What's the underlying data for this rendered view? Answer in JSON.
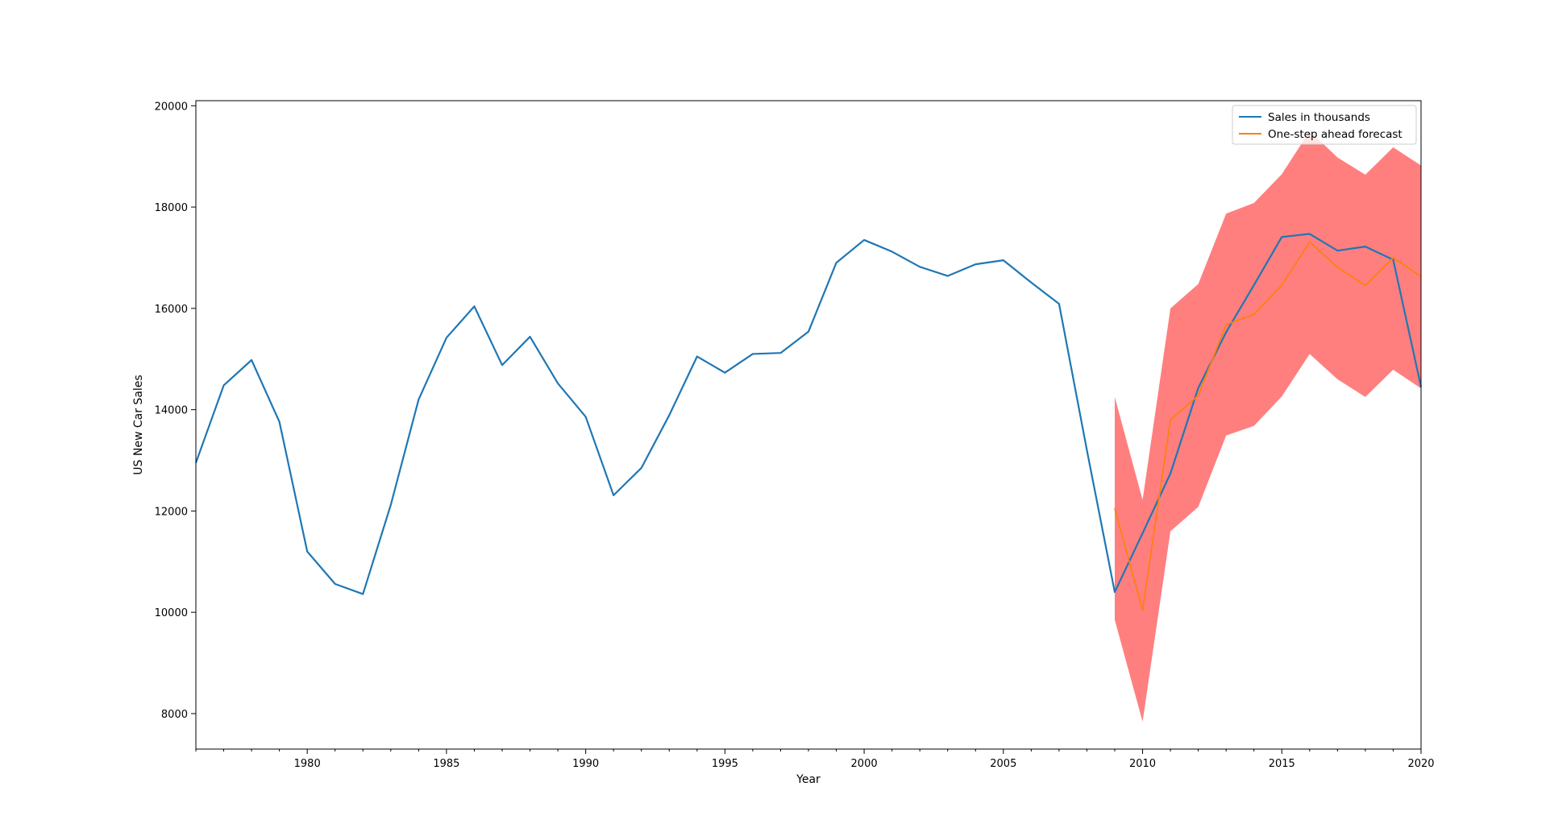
{
  "chart_data": {
    "type": "line",
    "title": "",
    "xlabel": "Year",
    "ylabel": "US New Car Sales",
    "xlim": [
      1976,
      2020
    ],
    "ylim": [
      7300,
      20100
    ],
    "xticks": [
      1980,
      1985,
      1990,
      1995,
      2000,
      2005,
      2010,
      2015,
      2020
    ],
    "yticks": [
      8000,
      10000,
      12000,
      14000,
      16000,
      18000,
      20000
    ],
    "legend_position": "top-right",
    "colors": {
      "sales": "#1f77b4",
      "forecast": "#ff7f0e",
      "band": "#ff0000"
    },
    "series": [
      {
        "name": "Sales in thousands",
        "x": [
          1976,
          1977,
          1978,
          1979,
          1980,
          1981,
          1982,
          1983,
          1984,
          1985,
          1986,
          1987,
          1988,
          1989,
          1990,
          1991,
          1992,
          1993,
          1994,
          1995,
          1996,
          1997,
          1998,
          1999,
          2000,
          2001,
          2002,
          2003,
          2004,
          2005,
          2006,
          2007,
          2008,
          2009,
          2010,
          2011,
          2012,
          2013,
          2014,
          2015,
          2016,
          2017,
          2018,
          2019,
          2020
        ],
        "values": [
          12950,
          14480,
          14980,
          13760,
          11200,
          10560,
          10360,
          12120,
          14200,
          15420,
          16040,
          14880,
          15440,
          14520,
          13860,
          12310,
          12850,
          13890,
          15050,
          14730,
          15100,
          15120,
          15540,
          16900,
          17350,
          17120,
          16820,
          16640,
          16870,
          16950,
          16510,
          16090,
          13200,
          10400,
          11560,
          12740,
          14430,
          15530,
          16460,
          17410,
          17470,
          17140,
          17220,
          16960,
          14450
        ]
      },
      {
        "name": "One-step ahead forecast",
        "x": [
          2009,
          2010,
          2011,
          2012,
          2013,
          2014,
          2015,
          2016,
          2017,
          2018,
          2019,
          2020
        ],
        "values": [
          12050,
          10040,
          13800,
          14280,
          15680,
          15880,
          16460,
          17310,
          16810,
          16450,
          17000,
          16630
        ]
      }
    ],
    "confidence_band": {
      "x": [
        2009,
        2010,
        2011,
        2012,
        2013,
        2014,
        2015,
        2016,
        2017,
        2018,
        2019,
        2020
      ],
      "upper": [
        14250,
        12220,
        16000,
        16480,
        17870,
        18080,
        18650,
        19500,
        18980,
        18640,
        19180,
        18820
      ],
      "lower": [
        9850,
        7840,
        11600,
        12080,
        13490,
        13680,
        14260,
        15100,
        14600,
        14250,
        14790,
        14420
      ]
    }
  }
}
